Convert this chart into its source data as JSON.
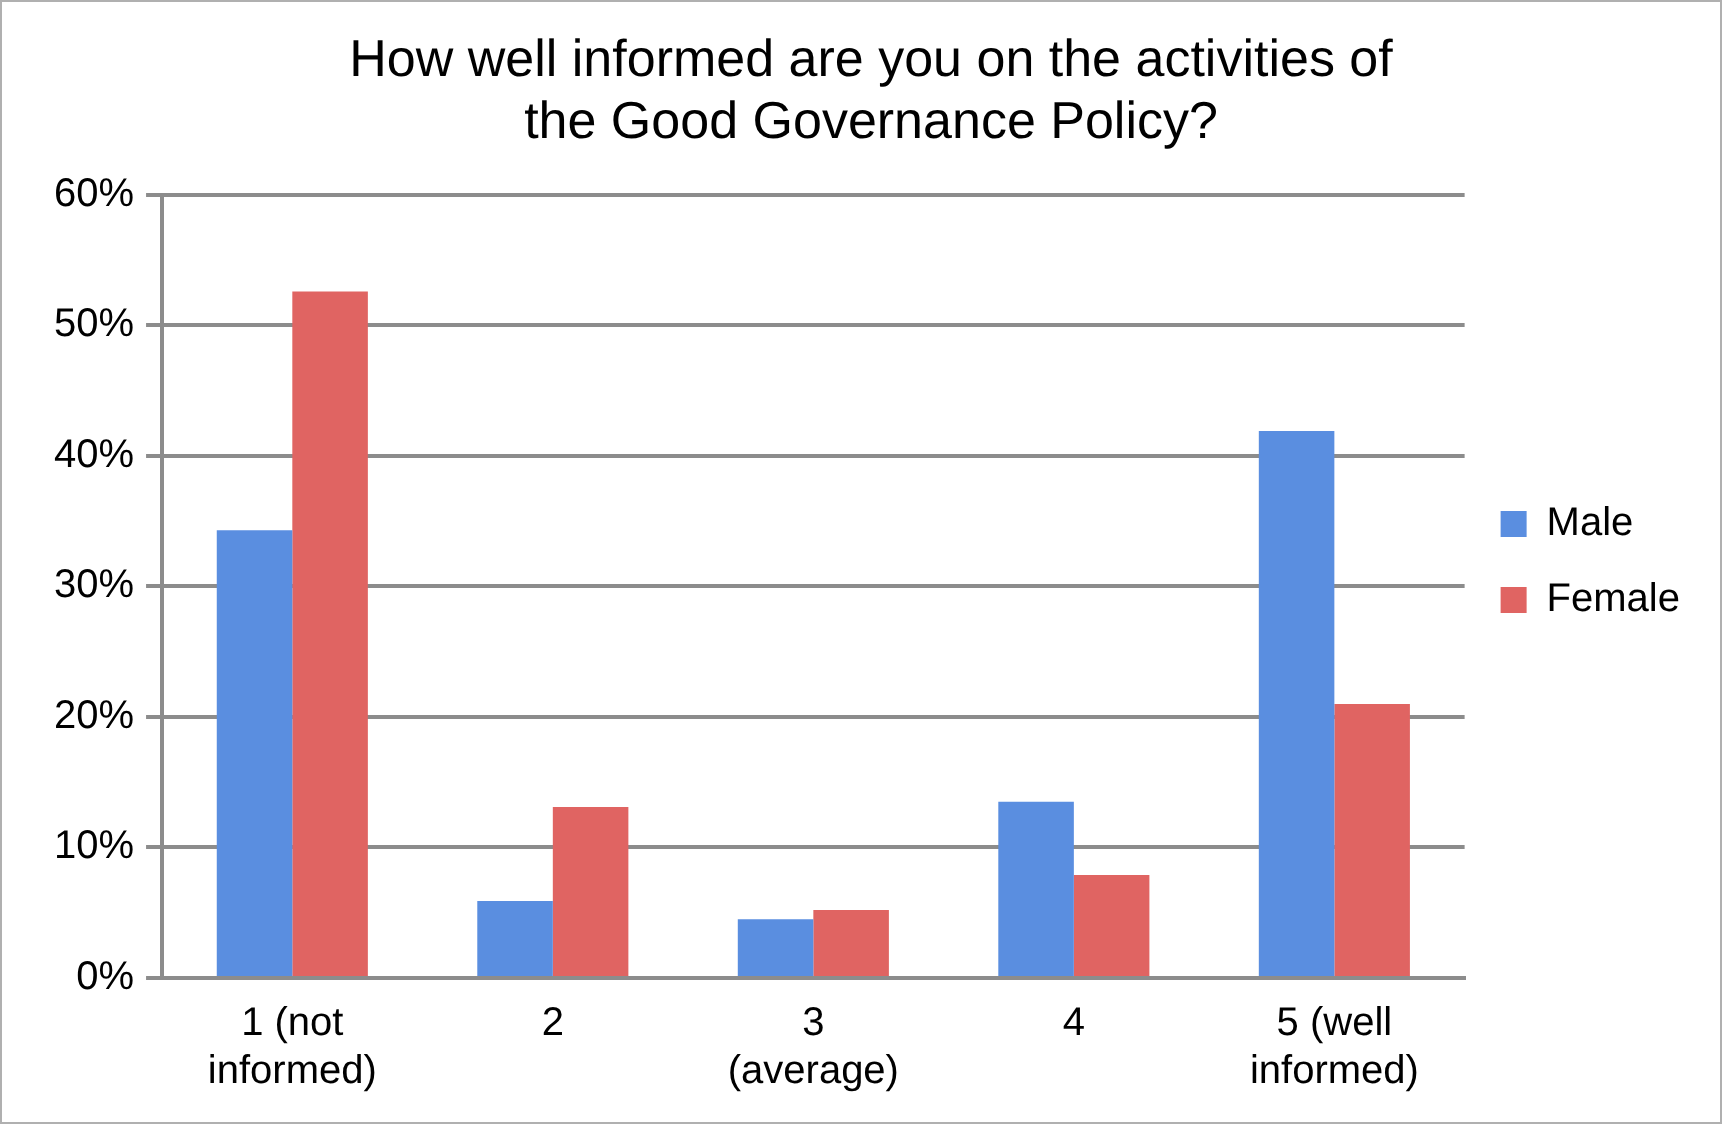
{
  "chart_data": {
    "type": "bar",
    "title": "How well informed are you on the activities of the Good Governance Policy?",
    "categories": [
      "1 (not informed)",
      "2",
      "3 (average)",
      "4",
      "5 (well informed)"
    ],
    "series": [
      {
        "name": "Male",
        "color": "#5a8ee0",
        "values": [
          34.3,
          5.9,
          4.5,
          13.5,
          41.9
        ]
      },
      {
        "name": "Female",
        "color": "#e06462",
        "values": [
          52.6,
          13.1,
          5.2,
          7.9,
          21.0
        ]
      }
    ],
    "ylim": [
      0,
      60
    ],
    "yticks": [
      {
        "value": 0,
        "label": "0%"
      },
      {
        "value": 10,
        "label": "10%"
      },
      {
        "value": 20,
        "label": "20%"
      },
      {
        "value": 30,
        "label": "30%"
      },
      {
        "value": 40,
        "label": "40%"
      },
      {
        "value": 50,
        "label": "50%"
      },
      {
        "value": 60,
        "label": "60%"
      }
    ],
    "grid": "y",
    "legend": "right"
  }
}
